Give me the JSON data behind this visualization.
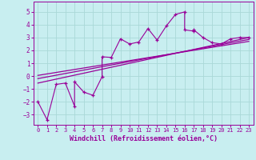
{
  "xlabel": "Windchill (Refroidissement éolien,°C)",
  "bg_color": "#c8eef0",
  "grid_color": "#aad8d8",
  "line_color": "#990099",
  "xlim": [
    -0.5,
    23.5
  ],
  "ylim": [
    -3.8,
    5.8
  ],
  "xticks": [
    0,
    1,
    2,
    3,
    4,
    5,
    6,
    7,
    8,
    9,
    10,
    11,
    12,
    13,
    14,
    15,
    16,
    17,
    18,
    19,
    20,
    21,
    22,
    23
  ],
  "yticks": [
    -3,
    -2,
    -1,
    0,
    1,
    2,
    3,
    4,
    5
  ],
  "scatter_x": [
    0,
    1,
    2,
    3,
    4,
    4,
    5,
    6,
    7,
    7,
    8,
    9,
    10,
    11,
    12,
    13,
    14,
    15,
    16,
    16,
    17,
    17,
    18,
    19,
    20,
    21,
    22,
    23
  ],
  "scatter_y": [
    -2.0,
    -3.4,
    -0.65,
    -0.55,
    -2.35,
    -0.45,
    -1.25,
    -1.5,
    -0.05,
    1.5,
    1.45,
    2.9,
    2.5,
    2.65,
    3.7,
    2.8,
    3.9,
    4.8,
    5.0,
    3.6,
    3.5,
    3.6,
    3.0,
    2.6,
    2.5,
    2.9,
    3.0,
    3.0
  ],
  "reg_lines": [
    {
      "x": [
        0,
        23
      ],
      "y": [
        -0.55,
        3.0
      ]
    },
    {
      "x": [
        0,
        23
      ],
      "y": [
        -0.2,
        2.85
      ]
    },
    {
      "x": [
        0,
        23
      ],
      "y": [
        0.05,
        2.7
      ]
    }
  ]
}
